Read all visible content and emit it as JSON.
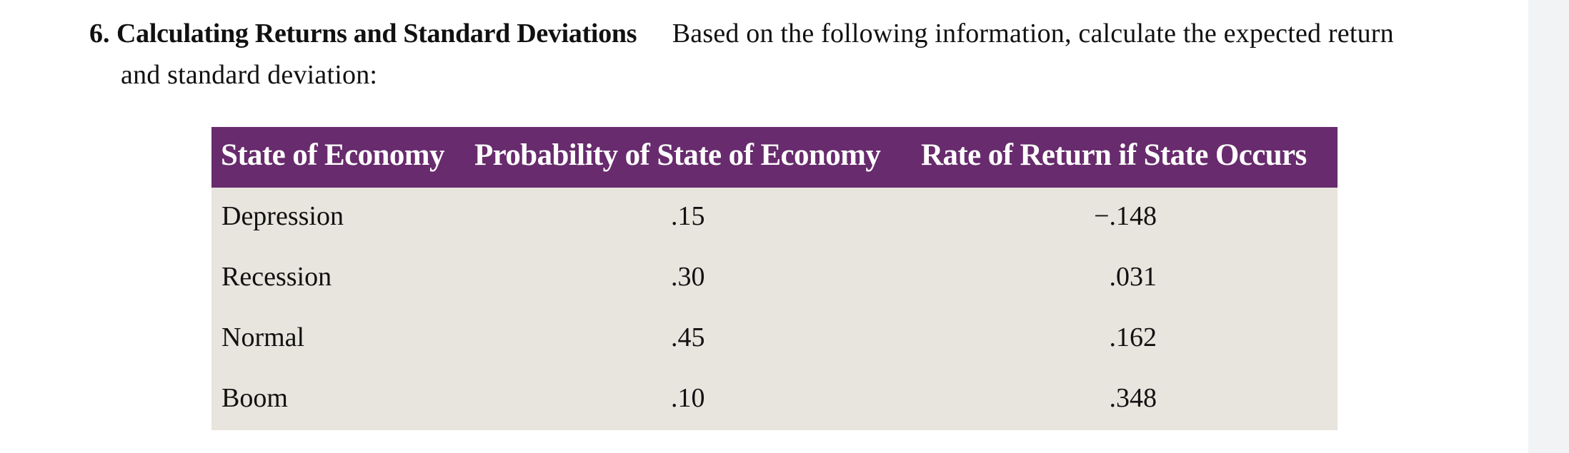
{
  "problem": {
    "number": "6.",
    "heading": "Calculating Returns and Standard Deviations",
    "prompt_line1": "Based on the following information, calculate the expected return",
    "prompt_line2": "and standard deviation:"
  },
  "table": {
    "headers": [
      "State of Economy",
      "Probability of State of Economy",
      "Rate of Return if State Occurs"
    ],
    "rows": [
      {
        "state": "Depression",
        "probability": ".15",
        "rate": "−.148"
      },
      {
        "state": "Recession",
        "probability": ".30",
        "rate": ".031"
      },
      {
        "state": "Normal",
        "probability": ".45",
        "rate": ".162"
      },
      {
        "state": "Boom",
        "probability": ".10",
        "rate": ".348"
      }
    ],
    "colors": {
      "header_bg": "#682b6d",
      "header_text": "#ffffff",
      "body_bg": "#e8e4de"
    }
  }
}
